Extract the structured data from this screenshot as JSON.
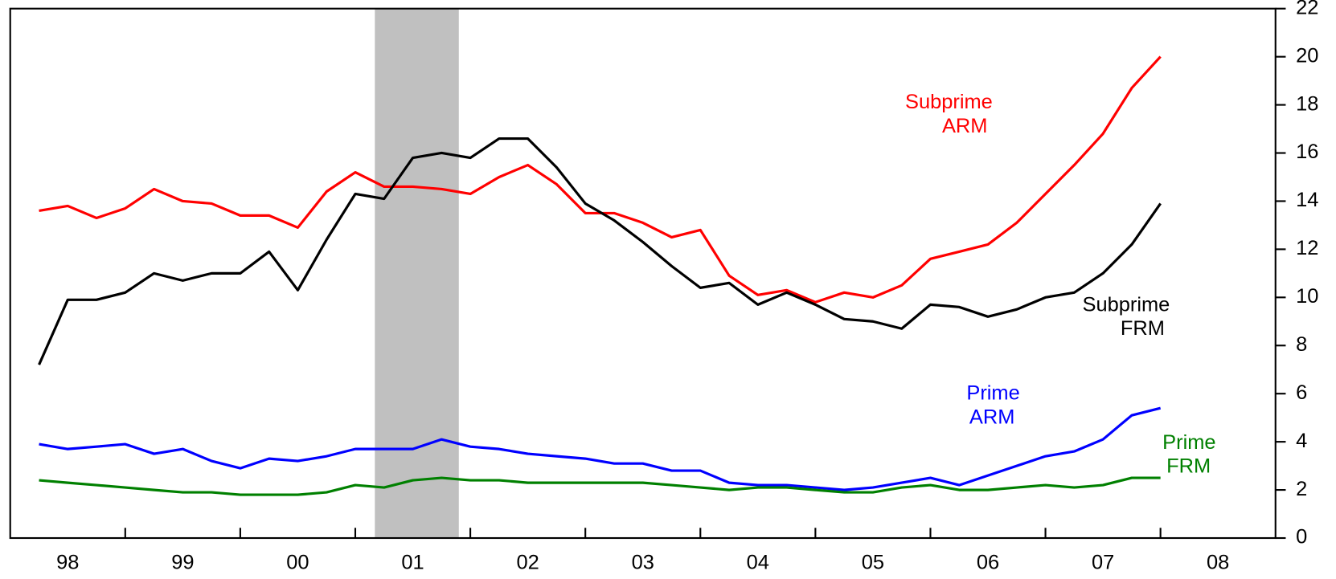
{
  "chart_data": {
    "type": "line",
    "x": [
      1998.25,
      1998.5,
      1998.75,
      1999,
      1999.25,
      1999.5,
      1999.75,
      2000,
      2000.25,
      2000.5,
      2000.75,
      2001,
      2001.25,
      2001.5,
      2001.75,
      2002,
      2002.25,
      2002.5,
      2002.75,
      2003,
      2003.25,
      2003.5,
      2003.75,
      2004,
      2004.25,
      2004.5,
      2004.75,
      2005,
      2005.25,
      2005.5,
      2005.75,
      2006,
      2006.25,
      2006.5,
      2006.75,
      2007,
      2007.25,
      2007.5,
      2007.75,
      2008
    ],
    "series": [
      {
        "label": [
          "Subprime",
          "ARM"
        ],
        "color": "#ff0000",
        "values": [
          13.6,
          13.8,
          13.3,
          13.7,
          14.5,
          14.0,
          13.9,
          13.4,
          13.4,
          12.9,
          14.4,
          15.2,
          14.6,
          14.6,
          14.5,
          14.3,
          15.0,
          15.5,
          14.7,
          13.5,
          13.5,
          13.1,
          12.5,
          12.8,
          10.9,
          10.1,
          10.3,
          9.8,
          10.2,
          10.0,
          10.5,
          11.6,
          11.9,
          12.2,
          13.1,
          14.3,
          15.5,
          16.8,
          18.7,
          20.0
        ]
      },
      {
        "label": [
          "Subprime",
          "FRM"
        ],
        "color": "#000000",
        "values": [
          7.2,
          9.9,
          9.9,
          10.2,
          11.0,
          10.7,
          11.0,
          11.0,
          11.9,
          10.3,
          12.4,
          14.3,
          14.1,
          15.8,
          16.0,
          15.8,
          16.6,
          16.6,
          15.4,
          13.9,
          13.2,
          12.3,
          11.3,
          10.4,
          10.6,
          9.7,
          10.2,
          9.7,
          9.1,
          9.0,
          8.7,
          9.7,
          9.6,
          9.2,
          9.5,
          10.0,
          10.2,
          11.0,
          12.2,
          13.9
        ]
      },
      {
        "label": [
          "Prime",
          "ARM"
        ],
        "color": "#0000ff",
        "values": [
          3.9,
          3.7,
          3.8,
          3.9,
          3.5,
          3.7,
          3.2,
          2.9,
          3.3,
          3.2,
          3.4,
          3.7,
          3.7,
          3.7,
          4.1,
          3.8,
          3.7,
          3.5,
          3.4,
          3.3,
          3.1,
          3.1,
          2.8,
          2.8,
          2.3,
          2.2,
          2.2,
          2.1,
          2.0,
          2.1,
          2.3,
          2.5,
          2.2,
          2.6,
          3.0,
          3.4,
          3.6,
          4.1,
          5.1,
          5.4
        ]
      },
      {
        "label": [
          "Prime",
          "FRM"
        ],
        "color": "#008000",
        "values": [
          2.4,
          2.3,
          2.2,
          2.1,
          2.0,
          1.9,
          1.9,
          1.8,
          1.8,
          1.8,
          1.9,
          2.2,
          2.1,
          2.4,
          2.5,
          2.4,
          2.4,
          2.3,
          2.3,
          2.3,
          2.3,
          2.3,
          2.2,
          2.1,
          2.0,
          2.1,
          2.1,
          2.0,
          1.9,
          1.9,
          2.1,
          2.2,
          2.0,
          2.0,
          2.1,
          2.2,
          2.1,
          2.2,
          2.5,
          2.5
        ]
      }
    ],
    "recession": [
      2001.17,
      2001.9
    ],
    "recession_color": "#c0c0c0",
    "xlim": [
      1998,
      2009
    ],
    "xticks": [
      {
        "value": 1998,
        "label": "98"
      },
      {
        "value": 1999,
        "label": "99"
      },
      {
        "value": 2000,
        "label": "00"
      },
      {
        "value": 2001,
        "label": "01"
      },
      {
        "value": 2002,
        "label": "02"
      },
      {
        "value": 2003,
        "label": "03"
      },
      {
        "value": 2004,
        "label": "04"
      },
      {
        "value": 2005,
        "label": "05"
      },
      {
        "value": 2006,
        "label": "06"
      },
      {
        "value": 2007,
        "label": "07"
      },
      {
        "value": 2008,
        "label": "08"
      }
    ],
    "ylim": [
      0,
      22
    ],
    "yticks": [
      0,
      2,
      4,
      6,
      8,
      10,
      12,
      14,
      16,
      18,
      20,
      22
    ],
    "y_axis_side": "right"
  }
}
